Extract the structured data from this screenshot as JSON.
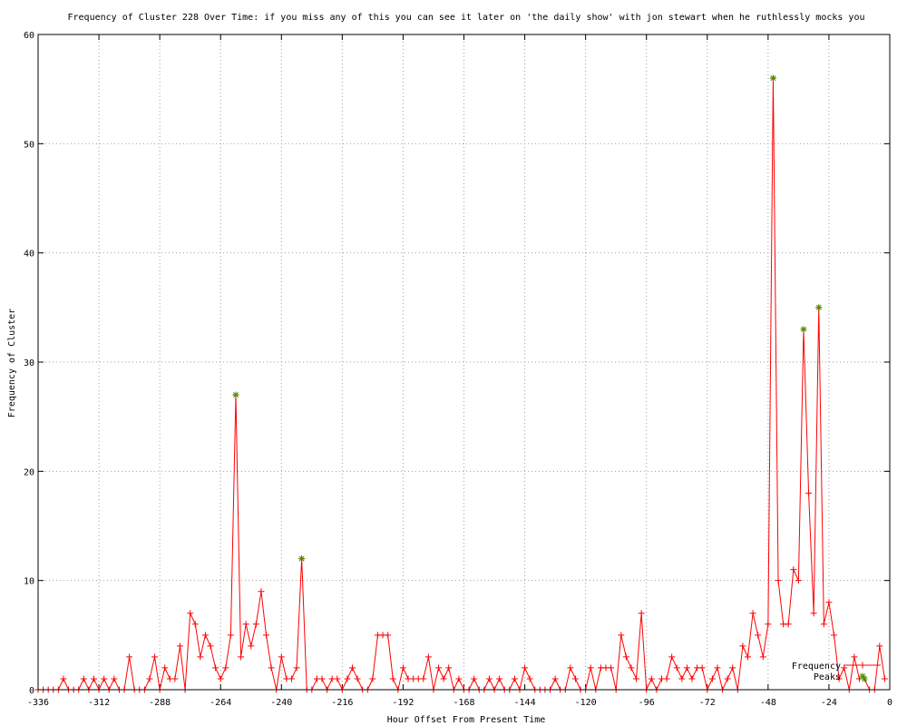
{
  "chart_data": {
    "type": "line",
    "title": "Frequency of Cluster 228 Over Time: if you miss any of this you can see it later on 'the daily show' with jon stewart when he ruthlessly mocks you",
    "x_label": "Hour Offset From Present Time",
    "y_label": "Frequency of Cluster",
    "xlim": [
      -336,
      0
    ],
    "xticks": [
      -336,
      -312,
      -288,
      -264,
      -240,
      -216,
      -192,
      -168,
      -144,
      -120,
      -96,
      -72,
      -48,
      -24,
      0
    ],
    "ylim": [
      0,
      60
    ],
    "yticks": [
      0,
      10,
      20,
      30,
      40,
      50,
      60
    ],
    "grid": true,
    "legend": "bottom right",
    "series": [
      {
        "name": "Frequency",
        "color": "#ff0000",
        "marker": "plus",
        "x": [
          -336,
          -334,
          -332,
          -330,
          -328,
          -326,
          -324,
          -322,
          -320,
          -318,
          -316,
          -314,
          -312,
          -310,
          -308,
          -306,
          -304,
          -302,
          -300,
          -298,
          -296,
          -294,
          -292,
          -290,
          -288,
          -286,
          -284,
          -282,
          -280,
          -278,
          -276,
          -274,
          -272,
          -270,
          -268,
          -266,
          -264,
          -262,
          -260,
          -258,
          -256,
          -254,
          -252,
          -250,
          -248,
          -246,
          -244,
          -242,
          -240,
          -238,
          -236,
          -234,
          -232,
          -230,
          -228,
          -226,
          -224,
          -222,
          -220,
          -218,
          -216,
          -214,
          -212,
          -210,
          -208,
          -206,
          -204,
          -202,
          -200,
          -198,
          -196,
          -194,
          -192,
          -190,
          -188,
          -186,
          -184,
          -182,
          -180,
          -178,
          -176,
          -174,
          -172,
          -170,
          -168,
          -166,
          -164,
          -162,
          -160,
          -158,
          -156,
          -154,
          -152,
          -150,
          -148,
          -146,
          -144,
          -142,
          -140,
          -138,
          -136,
          -134,
          -132,
          -130,
          -128,
          -126,
          -124,
          -122,
          -120,
          -118,
          -116,
          -114,
          -112,
          -110,
          -108,
          -106,
          -104,
          -102,
          -100,
          -98,
          -96,
          -94,
          -92,
          -90,
          -88,
          -86,
          -84,
          -82,
          -80,
          -78,
          -76,
          -74,
          -72,
          -70,
          -68,
          -66,
          -64,
          -62,
          -60,
          -58,
          -56,
          -54,
          -52,
          -50,
          -48,
          -46,
          -44,
          -42,
          -40,
          -38,
          -36,
          -34,
          -32,
          -30,
          -28,
          -26,
          -24,
          -22,
          -20,
          -18,
          -16,
          -14,
          -12,
          -10,
          -8,
          -6,
          -4,
          -2
        ],
        "values": [
          0,
          0,
          0,
          0,
          0,
          1,
          0,
          0,
          0,
          1,
          0,
          1,
          0,
          1,
          0,
          1,
          0,
          0,
          3,
          0,
          0,
          0,
          1,
          3,
          0,
          2,
          1,
          1,
          4,
          0,
          7,
          6,
          3,
          5,
          4,
          2,
          1,
          2,
          5,
          27,
          3,
          6,
          4,
          6,
          9,
          5,
          2,
          0,
          3,
          1,
          1,
          2,
          12,
          0,
          0,
          1,
          1,
          0,
          1,
          1,
          0,
          1,
          2,
          1,
          0,
          0,
          1,
          5,
          5,
          5,
          1,
          0,
          2,
          1,
          1,
          1,
          1,
          3,
          0,
          2,
          1,
          2,
          0,
          1,
          0,
          0,
          1,
          0,
          0,
          1,
          0,
          1,
          0,
          0,
          1,
          0,
          2,
          1,
          0,
          0,
          0,
          0,
          1,
          0,
          0,
          2,
          1,
          0,
          0,
          2,
          0,
          2,
          2,
          2,
          0,
          5,
          3,
          2,
          1,
          7,
          0,
          1,
          0,
          1,
          1,
          3,
          2,
          1,
          2,
          1,
          2,
          2,
          0,
          1,
          2,
          0,
          1,
          2,
          0,
          4,
          3,
          7,
          5,
          3,
          6,
          56,
          10,
          6,
          6,
          11,
          10,
          33,
          18,
          7,
          35,
          6,
          8,
          5,
          1,
          2,
          0,
          3,
          1,
          1,
          0,
          0,
          4,
          1
        ]
      },
      {
        "name": "Peaks",
        "color": "#4a8a00",
        "marker": "star",
        "line": false,
        "x": [
          -258,
          -232,
          -46,
          -34,
          -28,
          -10
        ],
        "values": [
          27,
          12,
          56,
          33,
          35,
          1
        ]
      }
    ]
  }
}
